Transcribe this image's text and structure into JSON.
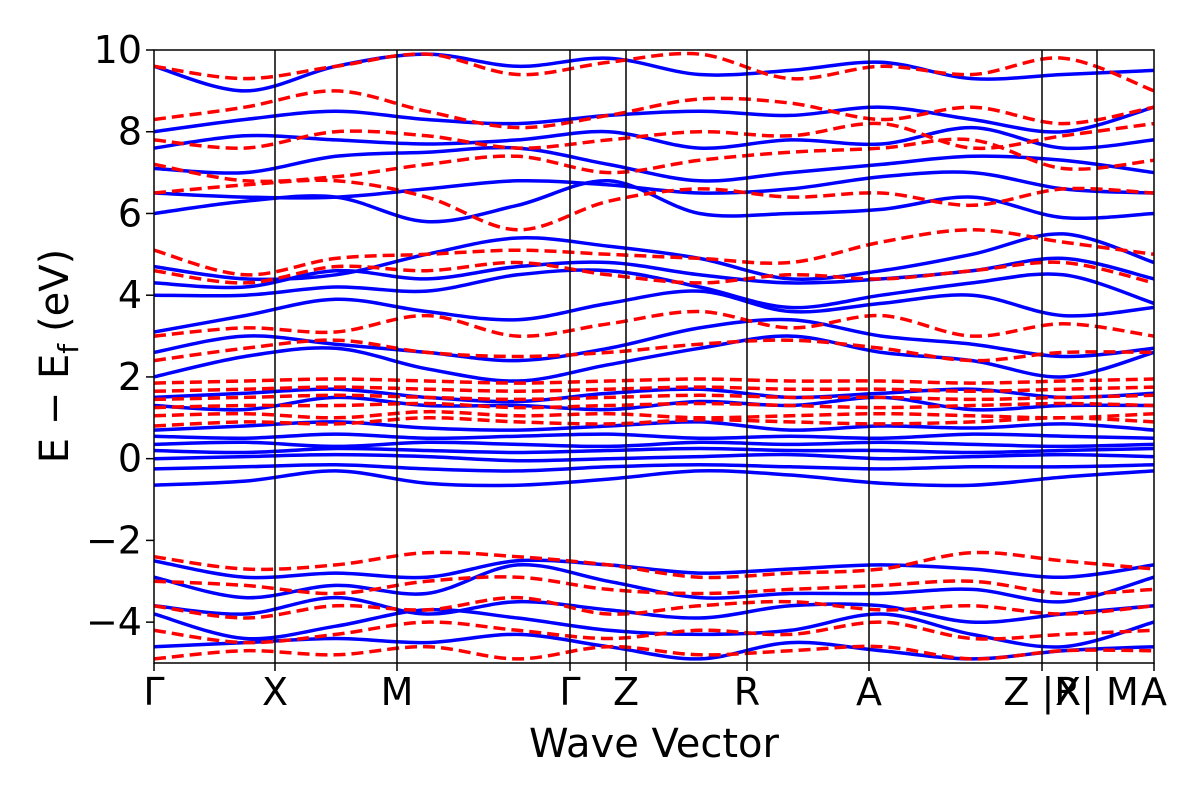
{
  "chart_data": {
    "type": "line",
    "xlabel": "Wave Vector",
    "ylabel": "E − E_f (eV)",
    "ylabel_main": "E − E",
    "ylabel_sub": "f",
    "ylabel_unit": "(eV)",
    "ylim": [
      -5,
      10
    ],
    "xlim": [
      0,
      1
    ],
    "yticks": [
      {
        "value": 10,
        "label": "10"
      },
      {
        "value": 8,
        "label": "8"
      },
      {
        "value": 6,
        "label": "6"
      },
      {
        "value": 4,
        "label": "4"
      },
      {
        "value": 2,
        "label": "2"
      },
      {
        "value": 0,
        "label": "0"
      },
      {
        "value": -2,
        "label": "−2"
      },
      {
        "value": -4,
        "label": "−4"
      }
    ],
    "kpoints": [
      {
        "label": "Γ",
        "x": 0.0
      },
      {
        "label": "X",
        "x": 0.121
      },
      {
        "label": "M",
        "x": 0.243
      },
      {
        "label": "Γ",
        "x": 0.416
      },
      {
        "label": "Z",
        "x": 0.472
      },
      {
        "label": "R",
        "x": 0.593
      },
      {
        "label": "A",
        "x": 0.715
      },
      {
        "label": "Z |R",
        "x": 0.888
      },
      {
        "label": "X| M",
        "x": 0.943
      },
      {
        "label": "A",
        "x": 1.0
      }
    ],
    "grid": false,
    "legend": "none",
    "series": [
      {
        "style": "solid",
        "color": "#0000ff",
        "bands": [
          [
            -4.6,
            -4.5,
            -4.4,
            -4.5,
            -4.3,
            -4.6,
            -4.9,
            -4.5,
            -4.7,
            -4.9,
            -4.7,
            -4.6
          ],
          [
            -3.8,
            -4.4,
            -4.1,
            -3.7,
            -3.9,
            -4.2,
            -4.3,
            -4.2,
            -3.8,
            -4.3,
            -4.6,
            -4.0
          ],
          [
            -3.6,
            -3.8,
            -3.4,
            -3.8,
            -3.5,
            -3.7,
            -3.9,
            -3.6,
            -3.6,
            -4.0,
            -3.8,
            -3.6
          ],
          [
            -2.9,
            -3.4,
            -3.1,
            -3.3,
            -2.6,
            -3.0,
            -3.4,
            -3.3,
            -3.3,
            -3.2,
            -3.5,
            -2.9
          ],
          [
            -2.5,
            -2.9,
            -2.8,
            -2.9,
            -2.5,
            -2.6,
            -2.8,
            -2.7,
            -2.6,
            -2.7,
            -2.9,
            -2.6
          ],
          [
            -0.65,
            -0.55,
            -0.3,
            -0.6,
            -0.65,
            -0.5,
            -0.3,
            -0.4,
            -0.6,
            -0.65,
            -0.45,
            -0.3
          ],
          [
            -0.25,
            -0.2,
            -0.15,
            -0.25,
            -0.3,
            -0.2,
            -0.15,
            -0.2,
            -0.25,
            -0.2,
            -0.2,
            -0.15
          ],
          [
            0.0,
            0.05,
            0.1,
            0.05,
            -0.05,
            0.0,
            0.05,
            0.1,
            0.0,
            0.05,
            0.1,
            0.05
          ],
          [
            0.2,
            0.15,
            0.25,
            0.2,
            0.15,
            0.2,
            0.25,
            0.2,
            0.2,
            0.15,
            0.2,
            0.25
          ],
          [
            0.35,
            0.4,
            0.3,
            0.4,
            0.35,
            0.3,
            0.4,
            0.35,
            0.4,
            0.35,
            0.3,
            0.35
          ],
          [
            0.55,
            0.5,
            0.6,
            0.5,
            0.55,
            0.6,
            0.5,
            0.55,
            0.5,
            0.6,
            0.55,
            0.5
          ],
          [
            0.7,
            0.8,
            0.9,
            0.75,
            0.7,
            0.8,
            0.9,
            0.7,
            0.8,
            0.75,
            0.85,
            0.7
          ],
          [
            1.3,
            1.2,
            1.5,
            1.3,
            1.3,
            1.2,
            1.4,
            1.3,
            1.5,
            1.2,
            1.3,
            1.3
          ],
          [
            1.5,
            1.6,
            1.7,
            1.5,
            1.4,
            1.6,
            1.7,
            1.5,
            1.6,
            1.7,
            1.5,
            1.6
          ],
          [
            2.0,
            2.5,
            2.7,
            2.2,
            1.9,
            2.3,
            2.7,
            3.0,
            2.6,
            2.4,
            2.0,
            2.6
          ],
          [
            2.6,
            3.0,
            2.8,
            2.6,
            2.4,
            2.7,
            3.2,
            3.4,
            3.0,
            2.8,
            2.5,
            2.7
          ],
          [
            3.1,
            3.5,
            3.9,
            3.6,
            3.4,
            3.8,
            4.1,
            3.6,
            3.8,
            4.0,
            3.5,
            3.7
          ],
          [
            4.0,
            4.0,
            4.2,
            4.1,
            4.5,
            4.6,
            4.2,
            3.7,
            4.0,
            4.3,
            4.5,
            3.8
          ],
          [
            4.3,
            4.2,
            4.6,
            4.4,
            4.7,
            4.8,
            4.5,
            4.3,
            4.4,
            4.6,
            4.9,
            4.4
          ],
          [
            4.7,
            4.4,
            4.5,
            5.0,
            5.4,
            5.2,
            4.9,
            4.4,
            4.6,
            5.0,
            5.5,
            4.8
          ],
          [
            6.0,
            6.3,
            6.4,
            5.8,
            6.2,
            6.8,
            6.0,
            6.0,
            6.1,
            6.4,
            5.9,
            6.0
          ],
          [
            6.5,
            6.4,
            6.4,
            6.6,
            6.8,
            6.7,
            6.5,
            6.6,
            6.9,
            7.0,
            6.6,
            6.5
          ],
          [
            7.1,
            7.0,
            7.4,
            7.5,
            7.6,
            7.2,
            6.8,
            7.0,
            7.2,
            7.4,
            7.3,
            7.0
          ],
          [
            7.6,
            7.9,
            7.8,
            7.7,
            7.8,
            8.0,
            7.6,
            7.8,
            7.7,
            8.1,
            7.6,
            7.8
          ],
          [
            8.0,
            8.3,
            8.5,
            8.3,
            8.2,
            8.4,
            8.5,
            8.4,
            8.6,
            8.3,
            8.0,
            8.6
          ],
          [
            9.6,
            9.0,
            9.6,
            9.9,
            9.6,
            9.8,
            9.4,
            9.5,
            9.7,
            9.3,
            9.4,
            9.5
          ]
        ]
      },
      {
        "style": "dashed",
        "color": "#ff0000",
        "bands": [
          [
            -4.9,
            -4.7,
            -4.8,
            -4.6,
            -4.9,
            -4.6,
            -4.8,
            -4.7,
            -4.6,
            -4.9,
            -4.7,
            -4.7
          ],
          [
            -4.2,
            -4.5,
            -4.3,
            -4.0,
            -4.2,
            -4.4,
            -4.2,
            -4.3,
            -4.0,
            -4.4,
            -4.3,
            -4.2
          ],
          [
            -3.6,
            -3.9,
            -3.6,
            -3.7,
            -3.4,
            -3.8,
            -3.6,
            -3.5,
            -3.7,
            -3.6,
            -3.8,
            -3.6
          ],
          [
            -3.0,
            -3.1,
            -3.3,
            -3.0,
            -2.9,
            -3.2,
            -3.3,
            -3.2,
            -3.1,
            -3.0,
            -3.3,
            -3.2
          ],
          [
            -2.4,
            -2.7,
            -2.6,
            -2.3,
            -2.4,
            -2.6,
            -2.9,
            -2.8,
            -2.7,
            -2.3,
            -2.5,
            -2.7
          ],
          [
            0.8,
            0.9,
            0.85,
            1.0,
            0.9,
            0.85,
            0.95,
            0.9,
            0.85,
            0.9,
            1.0,
            0.9
          ],
          [
            1.05,
            1.1,
            1.0,
            1.15,
            1.05,
            1.1,
            1.0,
            1.05,
            1.1,
            1.05,
            1.0,
            1.1
          ],
          [
            1.25,
            1.3,
            1.3,
            1.35,
            1.25,
            1.3,
            1.35,
            1.3,
            1.25,
            1.3,
            1.35,
            1.3
          ],
          [
            1.45,
            1.5,
            1.55,
            1.5,
            1.45,
            1.5,
            1.55,
            1.5,
            1.5,
            1.45,
            1.5,
            1.55
          ],
          [
            1.65,
            1.7,
            1.75,
            1.7,
            1.65,
            1.7,
            1.75,
            1.7,
            1.7,
            1.65,
            1.7,
            1.75
          ],
          [
            1.85,
            1.9,
            1.95,
            1.9,
            1.85,
            1.9,
            1.95,
            1.9,
            1.9,
            1.85,
            1.9,
            1.95
          ],
          [
            2.4,
            2.7,
            2.9,
            2.6,
            2.5,
            2.6,
            2.8,
            2.9,
            2.7,
            2.4,
            2.6,
            2.6
          ],
          [
            3.0,
            3.2,
            3.1,
            3.5,
            3.0,
            3.3,
            3.6,
            3.2,
            3.5,
            3.0,
            3.3,
            3.0
          ],
          [
            4.6,
            4.3,
            4.7,
            4.6,
            4.8,
            4.5,
            4.3,
            4.5,
            4.4,
            4.6,
            4.8,
            4.3
          ],
          [
            5.1,
            4.5,
            4.9,
            5.0,
            5.1,
            5.0,
            4.9,
            4.8,
            5.3,
            5.6,
            5.3,
            5.0
          ],
          [
            6.5,
            6.7,
            6.8,
            6.4,
            5.6,
            6.3,
            6.6,
            6.4,
            6.5,
            6.2,
            6.6,
            6.5
          ],
          [
            7.2,
            6.8,
            6.9,
            7.2,
            7.4,
            7.0,
            7.3,
            7.5,
            7.6,
            7.8,
            7.1,
            7.3
          ],
          [
            7.8,
            7.6,
            8.0,
            7.9,
            7.6,
            7.8,
            8.0,
            7.9,
            8.2,
            7.6,
            7.9,
            8.2
          ],
          [
            8.3,
            8.6,
            9.0,
            8.5,
            8.1,
            8.4,
            8.8,
            8.7,
            8.3,
            8.6,
            8.2,
            8.6
          ],
          [
            9.6,
            9.3,
            9.6,
            9.9,
            9.4,
            9.7,
            9.9,
            9.3,
            9.6,
            9.4,
            9.8,
            9.0
          ]
        ]
      }
    ]
  }
}
